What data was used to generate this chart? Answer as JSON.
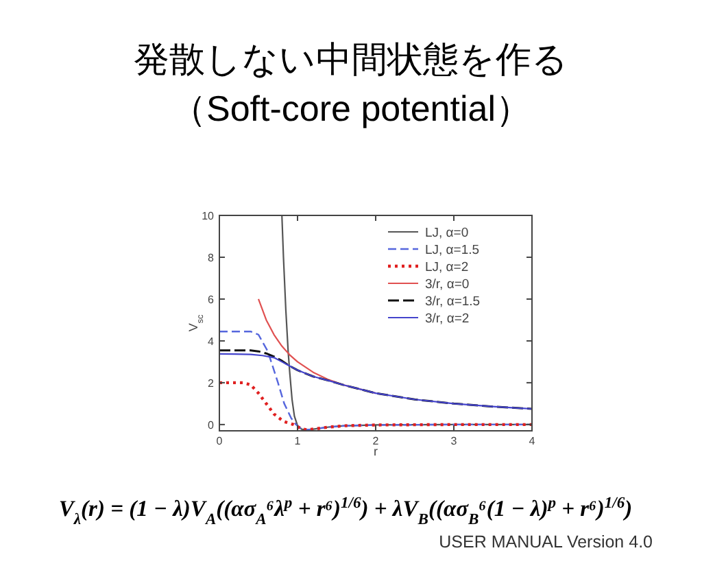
{
  "chart_data": {
    "type": "line",
    "title": "発散しない中間状態を作る",
    "subtitle": "（Soft-core potential）",
    "xlabel": "r",
    "ylabel": "V$_{sc}$",
    "xlim": [
      0,
      4
    ],
    "ylim": [
      -0.3,
      10
    ],
    "xticks": [
      0,
      1,
      2,
      3,
      4
    ],
    "yticks": [
      0,
      2,
      4,
      6,
      8,
      10
    ],
    "grid": false,
    "legend": "top right",
    "annotations": [
      "V$_{λ}$(r) = (1 − λ)V$_{A}$((ασ$_{A}$⁶λ$^{p}$ + r⁶)$^{1/6}$) + λV$_{B}$((ασ$_{B}$⁶(1 − λ)$^{p}$ + r⁶)$^{1/6}$)",
      "USER MANUAL Version 4.0"
    ],
    "series": [
      {
        "name": "LJ, α=0",
        "color": "#555555",
        "line_style": "solid",
        "x": [
          0.8,
          0.82,
          0.85,
          0.88,
          0.9,
          0.93,
          0.96,
          1.0,
          1.05,
          1.12,
          1.2,
          1.4,
          1.6,
          2,
          3,
          4
        ],
        "values": [
          10,
          8,
          5.5,
          3.5,
          2.5,
          1.2,
          0.4,
          -0.05,
          -0.22,
          -0.25,
          -0.22,
          -0.12,
          -0.06,
          -0.02,
          0,
          0
        ]
      },
      {
        "name": "LJ, α=1.5",
        "color": "#5566dd",
        "line_style": "dashed",
        "x": [
          0,
          0.2,
          0.4,
          0.5,
          0.62,
          0.75,
          0.83,
          0.92,
          0.98,
          1.05,
          1.12,
          1.2,
          1.4,
          1.6,
          2,
          3,
          4
        ],
        "values": [
          4.45,
          4.45,
          4.45,
          4.3,
          3.5,
          2.0,
          1.0,
          0.3,
          0,
          -0.2,
          -0.25,
          -0.22,
          -0.12,
          -0.06,
          -0.02,
          0,
          0
        ]
      },
      {
        "name": "LJ, α=2",
        "color": "#e02020",
        "line_style": "dotted",
        "x": [
          0,
          0.2,
          0.3,
          0.4,
          0.5,
          0.6,
          0.7,
          0.82,
          0.95,
          1.05,
          1.12,
          1.2,
          1.4,
          1.6,
          2,
          3,
          4
        ],
        "values": [
          2.0,
          2.0,
          2.0,
          1.9,
          1.5,
          1.0,
          0.5,
          0.15,
          0,
          -0.2,
          -0.25,
          -0.22,
          -0.12,
          -0.06,
          -0.02,
          0,
          0
        ]
      },
      {
        "name": "3/r, α=0",
        "color": "#e05050",
        "line_style": "solid",
        "x": [
          0.5,
          0.6,
          0.7,
          0.8,
          0.9,
          1.0,
          1.2,
          1.4,
          1.6,
          2
        ],
        "values": [
          6,
          5,
          4.29,
          3.75,
          3.33,
          3,
          2.5,
          2.14,
          1.88,
          1.5
        ]
      },
      {
        "name": "3/r, α=1.5",
        "color": "#111111",
        "line_style": "dashed",
        "x": [
          0,
          0.2,
          0.4,
          0.5,
          0.6,
          0.7,
          0.8,
          0.9,
          1.0,
          1.2,
          1.4,
          1.6,
          2,
          2.5,
          3,
          3.5,
          4
        ],
        "values": [
          3.55,
          3.55,
          3.55,
          3.5,
          3.4,
          3.25,
          3.05,
          2.8,
          2.6,
          2.3,
          2.1,
          1.88,
          1.5,
          1.2,
          1.0,
          0.86,
          0.75
        ]
      },
      {
        "name": "3/r, α=2",
        "color": "#4444cc",
        "line_style": "solid",
        "x": [
          0,
          0.2,
          0.4,
          0.55,
          0.7,
          0.8,
          0.9,
          1.0,
          1.2,
          1.4,
          1.6,
          2,
          2.5,
          3,
          3.5,
          4
        ],
        "values": [
          3.38,
          3.37,
          3.35,
          3.3,
          3.2,
          3.0,
          2.8,
          2.6,
          2.3,
          2.1,
          1.88,
          1.5,
          1.2,
          1.0,
          0.86,
          0.75
        ]
      }
    ]
  }
}
